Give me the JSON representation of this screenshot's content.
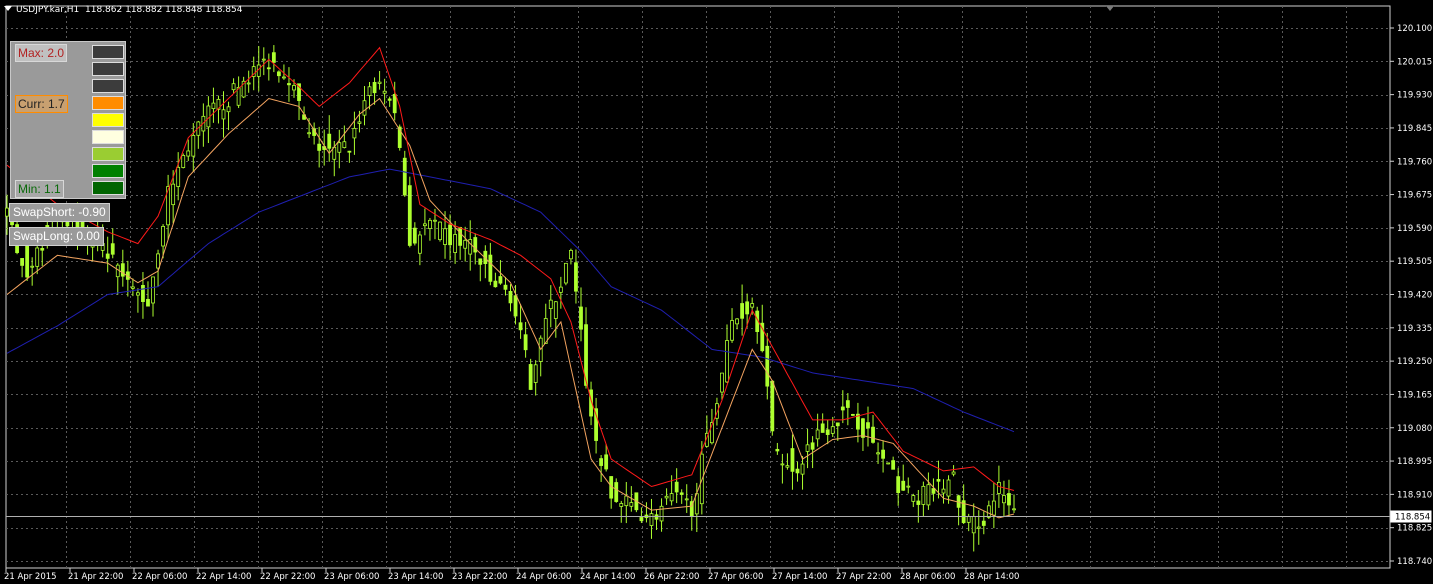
{
  "header": {
    "symbol": "USDJPY.kar,H1",
    "ohlc": "118.862 118.882 118.848 118.854"
  },
  "panel": {
    "max_label": "Max: 2.0",
    "curr_label": "Curr: 1.7",
    "min_label": "Min: 1.1",
    "swatches": [
      "#3c3c3c",
      "#3c3c3c",
      "#3c3c3c",
      "#ff8c00",
      "#ffff00",
      "#ffffe0",
      "#9acd32",
      "#008000",
      "#006400"
    ]
  },
  "swap": {
    "short_label": "SwapShort: -0.90",
    "long_label": "SwapLong: 0.00"
  },
  "chart_data": {
    "type": "candlestick",
    "y_ticks": [
      "120.100",
      "120.015",
      "119.930",
      "119.845",
      "119.760",
      "119.675",
      "119.590",
      "119.505",
      "119.420",
      "119.335",
      "119.250",
      "119.165",
      "119.080",
      "118.995",
      "118.910",
      "118.825",
      "118.740"
    ],
    "ylim": [
      118.74,
      120.1
    ],
    "x_labels": [
      "21 Apr 2015",
      "21 Apr 22:00",
      "22 Apr 06:00",
      "22 Apr 14:00",
      "22 Apr 22:00",
      "23 Apr 06:00",
      "23 Apr 14:00",
      "23 Apr 22:00",
      "24 Apr 06:00",
      "24 Apr 14:00",
      "26 Apr 22:00",
      "27 Apr 06:00",
      "27 Apr 14:00",
      "27 Apr 22:00",
      "28 Apr 06:00",
      "28 Apr 14:00"
    ],
    "current_price": "118.854",
    "colors": {
      "candle": "#adff2f",
      "fast_ma": "#ff1a1a",
      "slow_ma": "#f4a460",
      "long_ma": "#1f1fb0",
      "grid": "#5a5a5a"
    },
    "anchors": {
      "close": [
        [
          0,
          119.62
        ],
        [
          4,
          119.48
        ],
        [
          8,
          119.58
        ],
        [
          12,
          119.62
        ],
        [
          16,
          119.55
        ],
        [
          20,
          119.52
        ],
        [
          24,
          119.44
        ],
        [
          26,
          119.42
        ],
        [
          28,
          119.4
        ],
        [
          32,
          119.68
        ],
        [
          36,
          119.8
        ],
        [
          40,
          119.88
        ],
        [
          44,
          119.92
        ],
        [
          48,
          119.98
        ],
        [
          52,
          120.02
        ],
        [
          56,
          119.98
        ],
        [
          60,
          119.82
        ],
        [
          64,
          119.78
        ],
        [
          68,
          119.8
        ],
        [
          72,
          119.95
        ],
        [
          76,
          119.93
        ],
        [
          78,
          119.8
        ],
        [
          80,
          119.55
        ],
        [
          84,
          119.6
        ],
        [
          88,
          119.56
        ],
        [
          92,
          119.55
        ],
        [
          96,
          119.45
        ],
        [
          100,
          119.42
        ],
        [
          104,
          119.2
        ],
        [
          106,
          119.32
        ],
        [
          110,
          119.45
        ],
        [
          112,
          119.52
        ],
        [
          116,
          119.1
        ],
        [
          120,
          118.9
        ],
        [
          124,
          118.88
        ],
        [
          128,
          118.85
        ],
        [
          132,
          118.9
        ],
        [
          136,
          118.88
        ],
        [
          140,
          119.1
        ],
        [
          144,
          119.35
        ],
        [
          148,
          119.4
        ],
        [
          150,
          119.3
        ],
        [
          152,
          119.05
        ],
        [
          156,
          118.96
        ],
        [
          160,
          119.05
        ],
        [
          164,
          119.1
        ],
        [
          168,
          119.12
        ],
        [
          172,
          119.04
        ],
        [
          176,
          118.95
        ],
        [
          180,
          118.9
        ],
        [
          184,
          118.92
        ],
        [
          188,
          118.95
        ],
        [
          190,
          118.83
        ],
        [
          194,
          118.85
        ],
        [
          197,
          118.92
        ],
        [
          200,
          118.854
        ]
      ],
      "fast_ma": [
        [
          0,
          119.75
        ],
        [
          10,
          119.65
        ],
        [
          20,
          119.58
        ],
        [
          26,
          119.55
        ],
        [
          30,
          119.62
        ],
        [
          36,
          119.82
        ],
        [
          44,
          119.92
        ],
        [
          52,
          120.02
        ],
        [
          58,
          119.95
        ],
        [
          62,
          119.9
        ],
        [
          68,
          119.96
        ],
        [
          74,
          120.05
        ],
        [
          78,
          119.9
        ],
        [
          82,
          119.65
        ],
        [
          88,
          119.6
        ],
        [
          96,
          119.56
        ],
        [
          102,
          119.52
        ],
        [
          108,
          119.46
        ],
        [
          112,
          119.35
        ],
        [
          116,
          119.15
        ],
        [
          120,
          119.0
        ],
        [
          128,
          118.93
        ],
        [
          136,
          118.96
        ],
        [
          142,
          119.15
        ],
        [
          148,
          119.38
        ],
        [
          154,
          119.24
        ],
        [
          160,
          119.1
        ],
        [
          166,
          119.1
        ],
        [
          172,
          119.12
        ],
        [
          178,
          119.02
        ],
        [
          186,
          118.97
        ],
        [
          192,
          118.98
        ],
        [
          197,
          118.93
        ],
        [
          200,
          118.92
        ]
      ],
      "slow_ma": [
        [
          0,
          119.42
        ],
        [
          10,
          119.52
        ],
        [
          20,
          119.5
        ],
        [
          26,
          119.45
        ],
        [
          30,
          119.48
        ],
        [
          36,
          119.72
        ],
        [
          44,
          119.83
        ],
        [
          52,
          119.92
        ],
        [
          58,
          119.9
        ],
        [
          64,
          119.78
        ],
        [
          70,
          119.88
        ],
        [
          74,
          119.92
        ],
        [
          80,
          119.8
        ],
        [
          84,
          119.66
        ],
        [
          92,
          119.55
        ],
        [
          100,
          119.45
        ],
        [
          106,
          119.28
        ],
        [
          110,
          119.35
        ],
        [
          116,
          119.0
        ],
        [
          120,
          118.93
        ],
        [
          128,
          118.87
        ],
        [
          136,
          118.88
        ],
        [
          142,
          119.08
        ],
        [
          148,
          119.28
        ],
        [
          152,
          119.2
        ],
        [
          158,
          119.0
        ],
        [
          164,
          119.05
        ],
        [
          170,
          119.06
        ],
        [
          176,
          119.04
        ],
        [
          186,
          118.9
        ],
        [
          192,
          118.88
        ],
        [
          197,
          118.85
        ],
        [
          200,
          118.86
        ]
      ],
      "long_ma": [
        [
          0,
          119.27
        ],
        [
          10,
          119.34
        ],
        [
          20,
          119.42
        ],
        [
          30,
          119.44
        ],
        [
          40,
          119.55
        ],
        [
          50,
          119.63
        ],
        [
          60,
          119.68
        ],
        [
          68,
          119.72
        ],
        [
          76,
          119.74
        ],
        [
          84,
          119.72
        ],
        [
          96,
          119.69
        ],
        [
          106,
          119.63
        ],
        [
          114,
          119.53
        ],
        [
          120,
          119.44
        ],
        [
          130,
          119.38
        ],
        [
          140,
          119.28
        ],
        [
          150,
          119.26
        ],
        [
          160,
          119.22
        ],
        [
          170,
          119.2
        ],
        [
          180,
          119.18
        ],
        [
          190,
          119.12
        ],
        [
          200,
          119.07
        ]
      ]
    }
  }
}
